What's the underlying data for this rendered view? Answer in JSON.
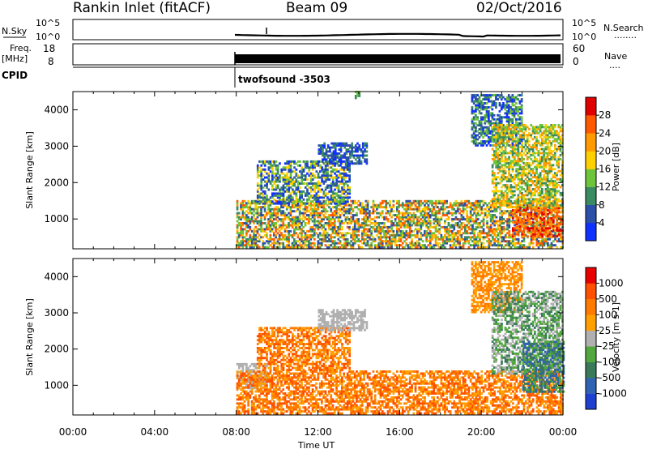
{
  "header": {
    "station": "Rankin Inlet (fitACF)",
    "beam": "Beam 09",
    "date": "02/Oct/2016"
  },
  "aux_panels": {
    "nsky_label": "N.Sky",
    "nsky_ticks": [
      "10^5",
      "10^0"
    ],
    "nsearch_label": "N.Search",
    "nsearch_ticks_right": [
      "10^5",
      "10^0"
    ],
    "nsearch_legend": "........",
    "freq_label_line1": "Freq.",
    "freq_label_line2": "[MHz]",
    "freq_ticks": [
      "18",
      "8"
    ],
    "nave_label": "Nave",
    "nave_ticks_right": [
      "60",
      "0"
    ],
    "nave_legend": "....",
    "cpid_label": "CPID",
    "cpid_value": "twofsound -3503"
  },
  "x_axis": {
    "label": "Time UT",
    "ticks": [
      "00:00",
      "04:00",
      "08:00",
      "12:00",
      "16:00",
      "20:00",
      "00:00"
    ]
  },
  "chart_data": [
    {
      "type": "heatmap",
      "quantity": "power",
      "ylabel": "Slant Range [km]",
      "yticks": [
        1000,
        2000,
        3000,
        4000
      ],
      "ylim": [
        180,
        4500
      ],
      "xlim_hours": [
        0,
        24
      ],
      "colorbar": {
        "label": "Power [dB]",
        "ticks": [
          "4",
          "8",
          "12",
          "16",
          "20",
          "24",
          "28"
        ],
        "colors": [
          "#1030ff",
          "#2c4fa8",
          "#3a8a62",
          "#6ec43a",
          "#ffd000",
          "#ff9a00",
          "#ff5a00",
          "#e00000"
        ]
      },
      "data_windows": [
        {
          "t_start": 8.0,
          "t_end": 24.0,
          "range_start": 200,
          "range_end": 1500,
          "level_range": [
            1,
            6
          ]
        },
        {
          "t_start": 9.0,
          "t_end": 13.5,
          "range_start": 1400,
          "range_end": 2600,
          "level_range": [
            0,
            4
          ]
        },
        {
          "t_start": 12.0,
          "t_end": 14.4,
          "range_start": 2500,
          "range_end": 3100,
          "level_range": [
            0,
            2
          ]
        },
        {
          "t_start": 13.8,
          "t_end": 14.0,
          "range_start": 4300,
          "range_end": 4500,
          "level_range": [
            2,
            3
          ]
        },
        {
          "t_start": 19.5,
          "t_end": 22.0,
          "range_start": 3000,
          "range_end": 4400,
          "level_range": [
            0,
            3
          ]
        },
        {
          "t_start": 20.5,
          "t_end": 24.0,
          "range_start": 1300,
          "range_end": 3600,
          "level_range": [
            2,
            5
          ]
        },
        {
          "t_start": 21.5,
          "t_end": 24.0,
          "range_start": 500,
          "range_end": 1300,
          "level_range": [
            5,
            7
          ]
        }
      ]
    },
    {
      "type": "heatmap",
      "quantity": "velocity",
      "ylabel": "Slant Range [km]",
      "yticks": [
        1000,
        2000,
        3000,
        4000
      ],
      "ylim": [
        180,
        4500
      ],
      "xlim_hours": [
        0,
        24
      ],
      "colorbar": {
        "label": "Velocity [m s-1]",
        "ticks": [
          "1000",
          "500",
          "100",
          "25",
          "-25",
          "-100",
          "-500",
          "-1000"
        ],
        "colors": [
          "#1e3fd0",
          "#2f62b0",
          "#3a7a5a",
          "#52a83e",
          "#b0b0b0",
          "#ffa000",
          "#ff7a00",
          "#ff5000",
          "#e80000"
        ]
      },
      "data_windows": [
        {
          "t_start": 8.0,
          "t_end": 9.5,
          "range_start": 900,
          "range_end": 1600,
          "level_range": [
            4,
            4
          ]
        },
        {
          "t_start": 8.0,
          "t_end": 24.0,
          "range_start": 200,
          "range_end": 1400,
          "level_range": [
            5,
            7
          ]
        },
        {
          "t_start": 9.0,
          "t_end": 13.5,
          "range_start": 1400,
          "range_end": 2600,
          "level_range": [
            5,
            7
          ]
        },
        {
          "t_start": 12.0,
          "t_end": 14.4,
          "range_start": 2500,
          "range_end": 3100,
          "level_range": [
            4,
            4
          ]
        },
        {
          "t_start": 19.5,
          "t_end": 22.0,
          "range_start": 3000,
          "range_end": 4400,
          "level_range": [
            5,
            6
          ]
        },
        {
          "t_start": 20.5,
          "t_end": 24.0,
          "range_start": 1300,
          "range_end": 3600,
          "level_range": [
            2,
            4
          ]
        },
        {
          "t_start": 22.0,
          "t_end": 24.0,
          "range_start": 800,
          "range_end": 2200,
          "level_range": [
            1,
            3
          ]
        }
      ]
    }
  ]
}
